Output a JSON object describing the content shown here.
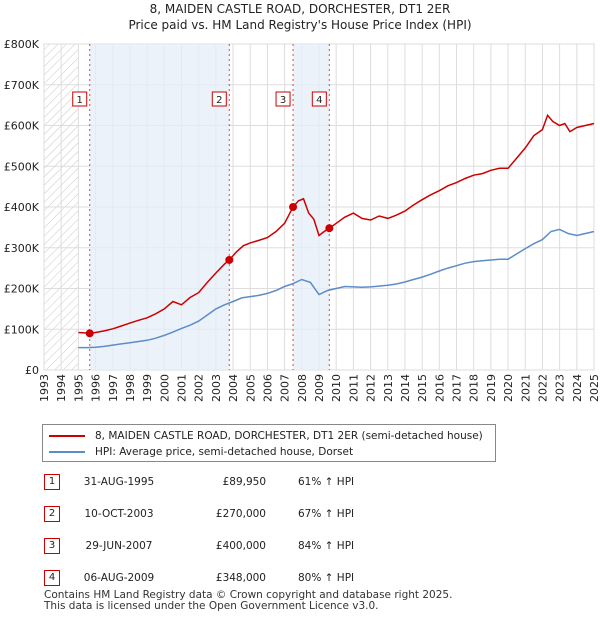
{
  "chart_data": {
    "type": "line",
    "title": "8, MAIDEN CASTLE ROAD, DORCHESTER, DT1 2ER",
    "subtitle": "Price paid vs. HM Land Registry's House Price Index (HPI)",
    "xlabel": "",
    "ylabel": "",
    "xlim": [
      1993,
      2025
    ],
    "ylim": [
      0,
      800000
    ],
    "x_ticks": [
      "1993",
      "1994",
      "1995",
      "1996",
      "1997",
      "1998",
      "1999",
      "2000",
      "2001",
      "2002",
      "2003",
      "2004",
      "2005",
      "2006",
      "2007",
      "2008",
      "2009",
      "2010",
      "2011",
      "2012",
      "2013",
      "2014",
      "2015",
      "2016",
      "2017",
      "2018",
      "2019",
      "2020",
      "2021",
      "2022",
      "2023",
      "2024",
      "2025"
    ],
    "y_ticks": [
      {
        "value": 0,
        "label": "£0"
      },
      {
        "value": 100000,
        "label": "£100K"
      },
      {
        "value": 200000,
        "label": "£200K"
      },
      {
        "value": 300000,
        "label": "£300K"
      },
      {
        "value": 400000,
        "label": "£400K"
      },
      {
        "value": 500000,
        "label": "£500K"
      },
      {
        "value": 600000,
        "label": "£600K"
      },
      {
        "value": 700000,
        "label": "£700K"
      },
      {
        "value": 800000,
        "label": "£800K"
      }
    ],
    "grid": true,
    "hatched_before": 1995.0,
    "series": [
      {
        "name": "8, MAIDEN CASTLE ROAD, DORCHESTER, DT1 2ER (semi-detached house)",
        "color": "#cc0000",
        "x": [
          1995.0,
          1995.66,
          1996.0,
          1996.5,
          1997.0,
          1997.5,
          1998.0,
          1998.5,
          1999.0,
          1999.5,
          2000.0,
          2000.5,
          2001.0,
          2001.5,
          2002.0,
          2002.5,
          2003.0,
          2003.5,
          2003.78,
          2004.2,
          2004.6,
          2005.0,
          2005.5,
          2006.0,
          2006.5,
          2007.0,
          2007.49,
          2007.8,
          2008.1,
          2008.4,
          2008.7,
          2009.0,
          2009.3,
          2009.6,
          2010.0,
          2010.5,
          2011.0,
          2011.5,
          2012.0,
          2012.5,
          2013.0,
          2013.5,
          2014.0,
          2014.5,
          2015.0,
          2015.5,
          2016.0,
          2016.5,
          2017.0,
          2017.5,
          2018.0,
          2018.5,
          2019.0,
          2019.5,
          2020.0,
          2020.5,
          2021.0,
          2021.5,
          2022.0,
          2022.3,
          2022.6,
          2023.0,
          2023.3,
          2023.6,
          2024.0,
          2024.5,
          2025.0
        ],
        "values": [
          92000,
          89950,
          92000,
          96000,
          101000,
          108000,
          115000,
          122000,
          128000,
          138000,
          150000,
          168000,
          160000,
          178000,
          190000,
          215000,
          238000,
          260000,
          270000,
          290000,
          305000,
          312000,
          318000,
          325000,
          340000,
          360000,
          400000,
          415000,
          420000,
          385000,
          370000,
          330000,
          340000,
          348000,
          360000,
          375000,
          385000,
          372000,
          368000,
          378000,
          372000,
          380000,
          390000,
          405000,
          418000,
          430000,
          440000,
          452000,
          460000,
          470000,
          478000,
          482000,
          490000,
          495000,
          495000,
          520000,
          545000,
          575000,
          590000,
          625000,
          610000,
          600000,
          605000,
          585000,
          595000,
          600000,
          605000
        ]
      },
      {
        "name": "HPI: Average price, semi-detached house, Dorset",
        "color": "#5b8dc9",
        "x": [
          1995.0,
          1995.5,
          1996.0,
          1996.5,
          1997.0,
          1997.5,
          1998.0,
          1998.5,
          1999.0,
          1999.5,
          2000.0,
          2000.5,
          2001.0,
          2001.5,
          2002.0,
          2002.5,
          2003.0,
          2003.5,
          2004.0,
          2004.5,
          2005.0,
          2005.5,
          2006.0,
          2006.5,
          2007.0,
          2007.5,
          2008.0,
          2008.5,
          2009.0,
          2009.5,
          2010.0,
          2010.5,
          2011.0,
          2011.5,
          2012.0,
          2012.5,
          2013.0,
          2013.5,
          2014.0,
          2014.5,
          2015.0,
          2015.5,
          2016.0,
          2016.5,
          2017.0,
          2017.5,
          2018.0,
          2018.5,
          2019.0,
          2019.5,
          2020.0,
          2020.5,
          2021.0,
          2021.5,
          2022.0,
          2022.5,
          2023.0,
          2023.5,
          2024.0,
          2024.5,
          2025.0
        ],
        "values": [
          55000,
          55000,
          56000,
          58000,
          61000,
          64000,
          67000,
          70000,
          73000,
          78000,
          85000,
          93000,
          102000,
          110000,
          120000,
          135000,
          150000,
          160000,
          168000,
          177000,
          180000,
          183000,
          188000,
          195000,
          205000,
          212000,
          222000,
          215000,
          185000,
          195000,
          200000,
          205000,
          204000,
          203000,
          204000,
          206000,
          208000,
          211000,
          216000,
          222000,
          228000,
          235000,
          243000,
          250000,
          256000,
          262000,
          266000,
          268000,
          270000,
          272000,
          272000,
          285000,
          298000,
          310000,
          320000,
          340000,
          345000,
          335000,
          330000,
          335000,
          340000
        ]
      }
    ],
    "sale_markers": [
      {
        "label": "1",
        "x": 1995.66,
        "value": 89950
      },
      {
        "label": "2",
        "x": 2003.78,
        "value": 270000
      },
      {
        "label": "3",
        "x": 2007.49,
        "value": 400000
      },
      {
        "label": "4",
        "x": 2009.6,
        "value": 348000
      }
    ]
  },
  "legend": {
    "property_label": "8, MAIDEN CASTLE ROAD, DORCHESTER, DT1 2ER (semi-detached house)",
    "property_color": "#cc0000",
    "hpi_label": "HPI: Average price, semi-detached house, Dorset",
    "hpi_color": "#5b8dc9"
  },
  "sales": [
    {
      "num": "1",
      "date": "31-AUG-1995",
      "price": "£89,950",
      "hpi": "61% ↑ HPI"
    },
    {
      "num": "2",
      "date": "10-OCT-2003",
      "price": "£270,000",
      "hpi": "67% ↑ HPI"
    },
    {
      "num": "3",
      "date": "29-JUN-2007",
      "price": "£400,000",
      "hpi": "84% ↑ HPI"
    },
    {
      "num": "4",
      "date": "06-AUG-2009",
      "price": "£348,000",
      "hpi": "80% ↑ HPI"
    }
  ],
  "footer": {
    "line1": "Contains HM Land Registry data © Crown copyright and database right 2025.",
    "line2": "This data is licensed under the Open Government Licence v3.0."
  }
}
